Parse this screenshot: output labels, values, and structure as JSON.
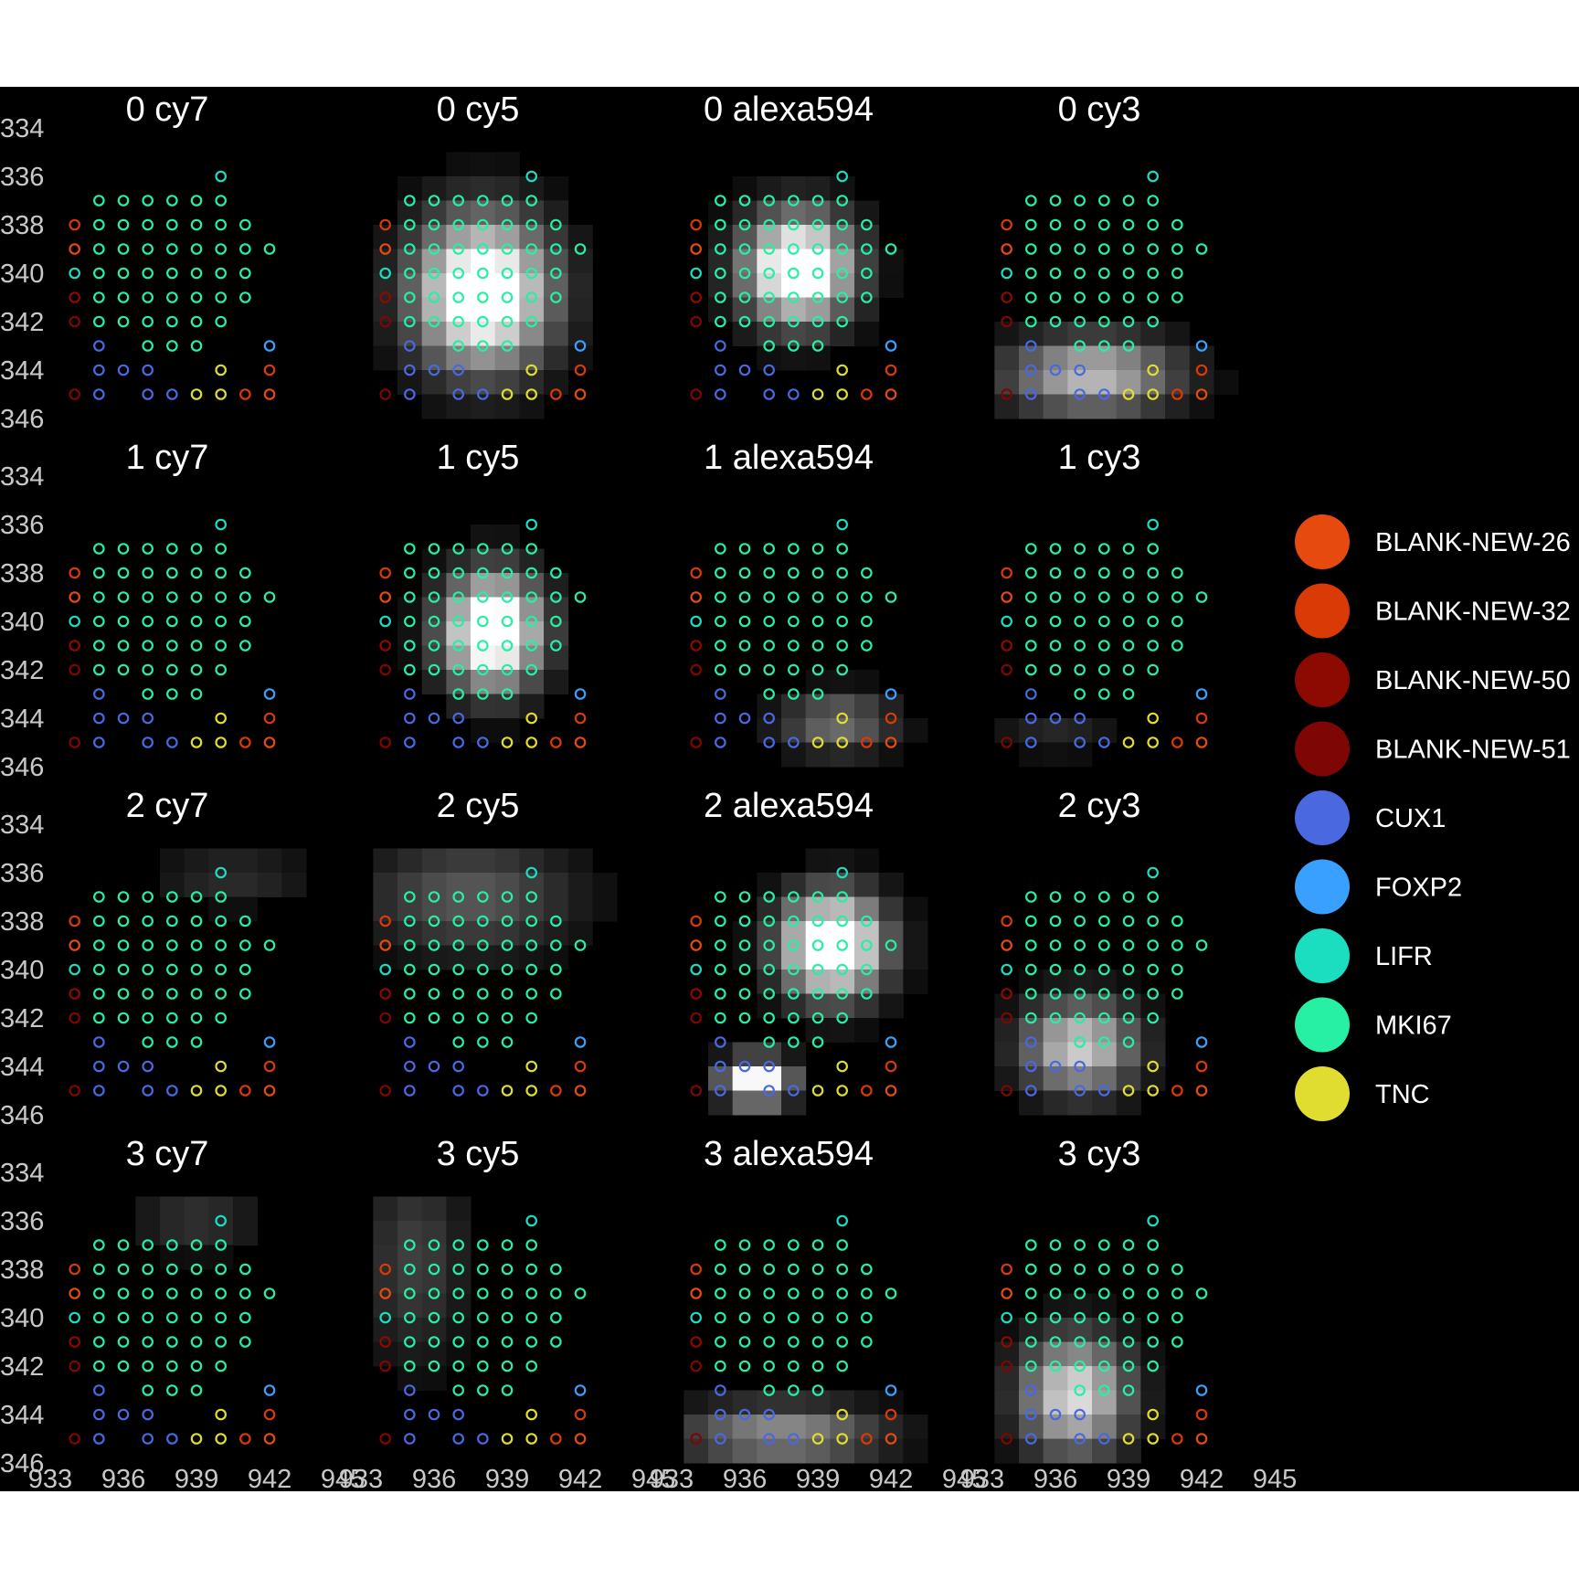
{
  "chart_data": {
    "type": "heatmap",
    "description_note": "",
    "rounds": [
      "0",
      "1",
      "2",
      "3"
    ],
    "channels": [
      "cy7",
      "cy5",
      "alexa594",
      "cy3"
    ],
    "panel_titles": [
      [
        "0  cy7",
        "0  cy5",
        "0  alexa594",
        "0  cy3"
      ],
      [
        "1  cy7",
        "1  cy5",
        "1  alexa594",
        "1  cy3"
      ],
      [
        "2  cy7",
        "2  cy5",
        "2  alexa594",
        "2  cy3"
      ],
      [
        "3  cy7",
        "3  cy5",
        "3  alexa594",
        "3  cy3"
      ]
    ],
    "x_ticks": [
      "933",
      "936",
      "939",
      "942",
      "945"
    ],
    "y_ticks": [
      "334",
      "336",
      "338",
      "340",
      "342",
      "344",
      "346"
    ],
    "xlim": [
      933,
      945
    ],
    "ylim": [
      334,
      346
    ],
    "y_reversed": true,
    "background_color": "#000000",
    "legend": {
      "position": "right",
      "entries": [
        {
          "name": "BLANK-NEW-26",
          "color": "#E64A0F"
        },
        {
          "name": "BLANK-NEW-32",
          "color": "#D93A06"
        },
        {
          "name": "BLANK-NEW-50",
          "color": "#8C0A02"
        },
        {
          "name": "BLANK-NEW-51",
          "color": "#7E0604"
        },
        {
          "name": "CUX1",
          "color": "#4A68E0"
        },
        {
          "name": "FOXP2",
          "color": "#3AA0FF"
        },
        {
          "name": "LIFR",
          "color": "#1BDDC0"
        },
        {
          "name": "MKI67",
          "color": "#27EFA4"
        },
        {
          "name": "TNC",
          "color": "#E0DD30"
        }
      ]
    },
    "spots": [
      {
        "x": 940,
        "y": 336,
        "gene": "LIFR"
      },
      {
        "x": 935,
        "y": 337,
        "gene": "MKI67"
      },
      {
        "x": 936,
        "y": 337,
        "gene": "MKI67"
      },
      {
        "x": 937,
        "y": 337,
        "gene": "MKI67"
      },
      {
        "x": 938,
        "y": 337,
        "gene": "MKI67"
      },
      {
        "x": 939,
        "y": 337,
        "gene": "MKI67"
      },
      {
        "x": 940,
        "y": 337,
        "gene": "MKI67"
      },
      {
        "x": 934,
        "y": 338,
        "gene": "BLANK-NEW-32"
      },
      {
        "x": 935,
        "y": 338,
        "gene": "MKI67"
      },
      {
        "x": 936,
        "y": 338,
        "gene": "MKI67"
      },
      {
        "x": 937,
        "y": 338,
        "gene": "MKI67"
      },
      {
        "x": 938,
        "y": 338,
        "gene": "MKI67"
      },
      {
        "x": 939,
        "y": 338,
        "gene": "MKI67"
      },
      {
        "x": 940,
        "y": 338,
        "gene": "MKI67"
      },
      {
        "x": 941,
        "y": 338,
        "gene": "MKI67"
      },
      {
        "x": 934,
        "y": 339,
        "gene": "BLANK-NEW-26"
      },
      {
        "x": 935,
        "y": 339,
        "gene": "MKI67"
      },
      {
        "x": 936,
        "y": 339,
        "gene": "MKI67"
      },
      {
        "x": 937,
        "y": 339,
        "gene": "MKI67"
      },
      {
        "x": 938,
        "y": 339,
        "gene": "MKI67"
      },
      {
        "x": 939,
        "y": 339,
        "gene": "MKI67"
      },
      {
        "x": 940,
        "y": 339,
        "gene": "MKI67"
      },
      {
        "x": 941,
        "y": 339,
        "gene": "MKI67"
      },
      {
        "x": 942,
        "y": 339,
        "gene": "MKI67"
      },
      {
        "x": 934,
        "y": 340,
        "gene": "LIFR"
      },
      {
        "x": 935,
        "y": 340,
        "gene": "MKI67"
      },
      {
        "x": 936,
        "y": 340,
        "gene": "MKI67"
      },
      {
        "x": 937,
        "y": 340,
        "gene": "MKI67"
      },
      {
        "x": 938,
        "y": 340,
        "gene": "MKI67"
      },
      {
        "x": 939,
        "y": 340,
        "gene": "MKI67"
      },
      {
        "x": 940,
        "y": 340,
        "gene": "MKI67"
      },
      {
        "x": 941,
        "y": 340,
        "gene": "MKI67"
      },
      {
        "x": 934,
        "y": 341,
        "gene": "BLANK-NEW-50"
      },
      {
        "x": 935,
        "y": 341,
        "gene": "MKI67"
      },
      {
        "x": 936,
        "y": 341,
        "gene": "MKI67"
      },
      {
        "x": 937,
        "y": 341,
        "gene": "MKI67"
      },
      {
        "x": 938,
        "y": 341,
        "gene": "MKI67"
      },
      {
        "x": 939,
        "y": 341,
        "gene": "MKI67"
      },
      {
        "x": 940,
        "y": 341,
        "gene": "MKI67"
      },
      {
        "x": 941,
        "y": 341,
        "gene": "MKI67"
      },
      {
        "x": 934,
        "y": 342,
        "gene": "BLANK-NEW-51"
      },
      {
        "x": 935,
        "y": 342,
        "gene": "MKI67"
      },
      {
        "x": 936,
        "y": 342,
        "gene": "MKI67"
      },
      {
        "x": 937,
        "y": 342,
        "gene": "MKI67"
      },
      {
        "x": 938,
        "y": 342,
        "gene": "MKI67"
      },
      {
        "x": 939,
        "y": 342,
        "gene": "MKI67"
      },
      {
        "x": 940,
        "y": 342,
        "gene": "MKI67"
      },
      {
        "x": 935,
        "y": 343,
        "gene": "CUX1"
      },
      {
        "x": 937,
        "y": 343,
        "gene": "MKI67"
      },
      {
        "x": 938,
        "y": 343,
        "gene": "MKI67"
      },
      {
        "x": 939,
        "y": 343,
        "gene": "MKI67"
      },
      {
        "x": 942,
        "y": 343,
        "gene": "FOXP2"
      },
      {
        "x": 935,
        "y": 344,
        "gene": "CUX1"
      },
      {
        "x": 936,
        "y": 344,
        "gene": "CUX1"
      },
      {
        "x": 937,
        "y": 344,
        "gene": "CUX1"
      },
      {
        "x": 940,
        "y": 344,
        "gene": "TNC"
      },
      {
        "x": 942,
        "y": 344,
        "gene": "BLANK-NEW-32"
      },
      {
        "x": 934,
        "y": 345,
        "gene": "BLANK-NEW-51"
      },
      {
        "x": 935,
        "y": 345,
        "gene": "CUX1"
      },
      {
        "x": 937,
        "y": 345,
        "gene": "CUX1"
      },
      {
        "x": 938,
        "y": 345,
        "gene": "CUX1"
      },
      {
        "x": 939,
        "y": 345,
        "gene": "TNC"
      },
      {
        "x": 940,
        "y": 345,
        "gene": "TNC"
      },
      {
        "x": 941,
        "y": 345,
        "gene": "BLANK-NEW-32"
      },
      {
        "x": 942,
        "y": 345,
        "gene": "BLANK-NEW-26"
      }
    ],
    "intensity_blobs": [
      [
        [],
        [
          {
            "cx": 938.0,
            "cy": 340.8,
            "rx": 2.6,
            "ry": 2.9,
            "peak": 1.0
          }
        ],
        [
          {
            "cx": 938.2,
            "cy": 339.8,
            "rx": 2.1,
            "ry": 2.1,
            "peak": 1.0
          }
        ],
        [
          {
            "cx": 937.5,
            "cy": 344.2,
            "rx": 3.2,
            "ry": 1.5,
            "peak": 0.6
          }
        ]
      ],
      [
        [],
        [
          {
            "cx": 938.4,
            "cy": 340.4,
            "rx": 1.9,
            "ry": 2.2,
            "peak": 1.0
          }
        ],
        [
          {
            "cx": 939.8,
            "cy": 344.2,
            "rx": 2.2,
            "ry": 1.2,
            "peak": 0.35
          }
        ],
        [
          {
            "cx": 936.0,
            "cy": 344.6,
            "rx": 2.4,
            "ry": 0.9,
            "peak": 0.12
          }
        ]
      ],
      [
        [
          {
            "cx": 940.5,
            "cy": 336.2,
            "rx": 3.0,
            "ry": 1.2,
            "peak": 0.14
          }
        ],
        [
          {
            "cx": 937.5,
            "cy": 337.0,
            "rx": 4.0,
            "ry": 2.2,
            "peak": 0.28
          }
        ],
        [
          {
            "cx": 939.6,
            "cy": 339.0,
            "rx": 2.0,
            "ry": 2.0,
            "peak": 1.0
          },
          {
            "cx": 936.5,
            "cy": 344.6,
            "rx": 1.3,
            "ry": 0.9,
            "peak": 0.9
          }
        ],
        [
          {
            "cx": 937.0,
            "cy": 343.2,
            "rx": 2.2,
            "ry": 1.8,
            "peak": 0.65
          }
        ]
      ],
      [
        [
          {
            "cx": 939.0,
            "cy": 336.0,
            "rx": 2.5,
            "ry": 1.3,
            "peak": 0.16
          }
        ],
        [
          {
            "cx": 935.2,
            "cy": 337.6,
            "rx": 2.0,
            "ry": 4.0,
            "peak": 0.2
          }
        ],
        [
          {
            "cx": 937.5,
            "cy": 344.8,
            "rx": 3.8,
            "ry": 1.2,
            "peak": 0.45
          }
        ],
        [
          {
            "cx": 936.8,
            "cy": 343.2,
            "rx": 2.1,
            "ry": 2.3,
            "peak": 0.7
          }
        ]
      ]
    ]
  }
}
